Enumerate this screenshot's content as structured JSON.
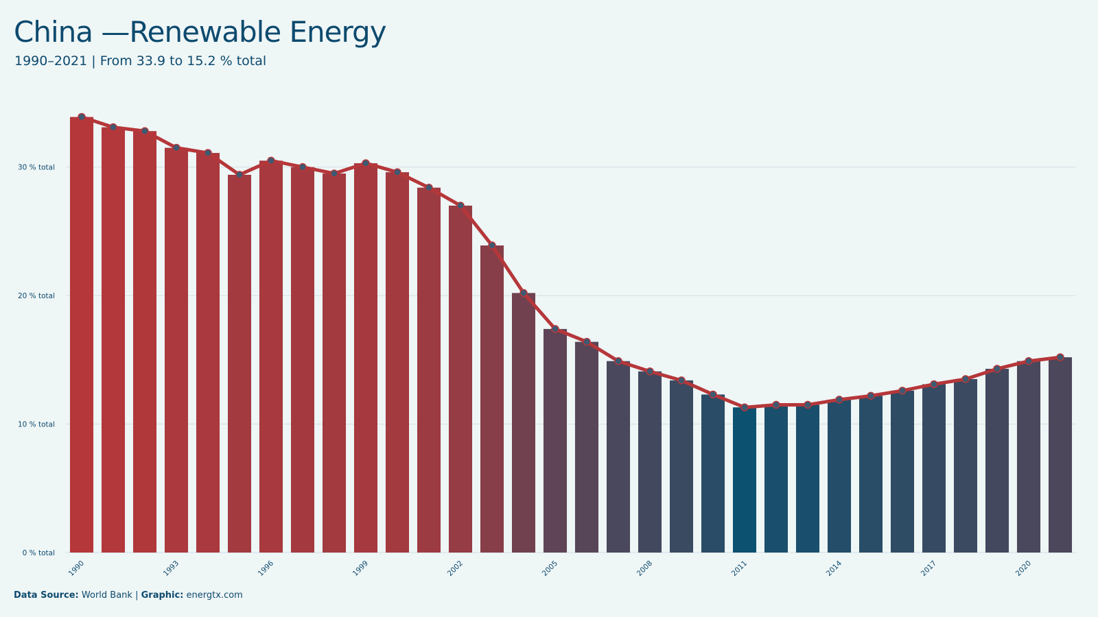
{
  "header": {
    "title": "China —Renewable Energy",
    "subtitle": "1990–2021 | From 33.9 to 15.2 % total"
  },
  "footer": {
    "source_label": "Data Source:",
    "source_value": "World Bank",
    "separator": "|",
    "graphic_label": "Graphic:",
    "graphic_value": "energtx.com"
  },
  "colors": {
    "background": "#eff6f6",
    "text": "#0d4a6e",
    "grid": "#d3dfe4",
    "line": "#b5373a",
    "high": "#b5373a",
    "low": "#0c5170",
    "point_fill": "#3d5a72"
  },
  "chart_data": {
    "type": "bar",
    "x": [
      1990,
      1991,
      1992,
      1993,
      1994,
      1995,
      1996,
      1997,
      1998,
      1999,
      2000,
      2001,
      2002,
      2003,
      2004,
      2005,
      2006,
      2007,
      2008,
      2009,
      2010,
      2011,
      2012,
      2013,
      2014,
      2015,
      2016,
      2017,
      2018,
      2019,
      2020,
      2021
    ],
    "values": [
      33.9,
      33.1,
      32.8,
      31.5,
      31.1,
      29.4,
      30.5,
      30.0,
      29.5,
      30.3,
      29.6,
      28.4,
      27.0,
      23.9,
      20.2,
      17.4,
      16.4,
      14.9,
      14.1,
      13.4,
      12.3,
      11.3,
      11.5,
      11.5,
      11.9,
      12.2,
      12.6,
      13.1,
      13.5,
      14.3,
      14.9,
      15.2
    ],
    "overlay": "line-with-points",
    "x_tick_labels": [
      "1990",
      "1993",
      "1996",
      "1999",
      "2002",
      "2005",
      "2008",
      "2011",
      "2014",
      "2017",
      "2020"
    ],
    "y_ticks": [
      0,
      10,
      20,
      30
    ],
    "y_tick_labels": [
      "0 % total",
      "10 % total",
      "20 % total",
      "30 % total"
    ],
    "ylim": [
      0,
      35
    ],
    "grid": true,
    "legend": "none"
  }
}
